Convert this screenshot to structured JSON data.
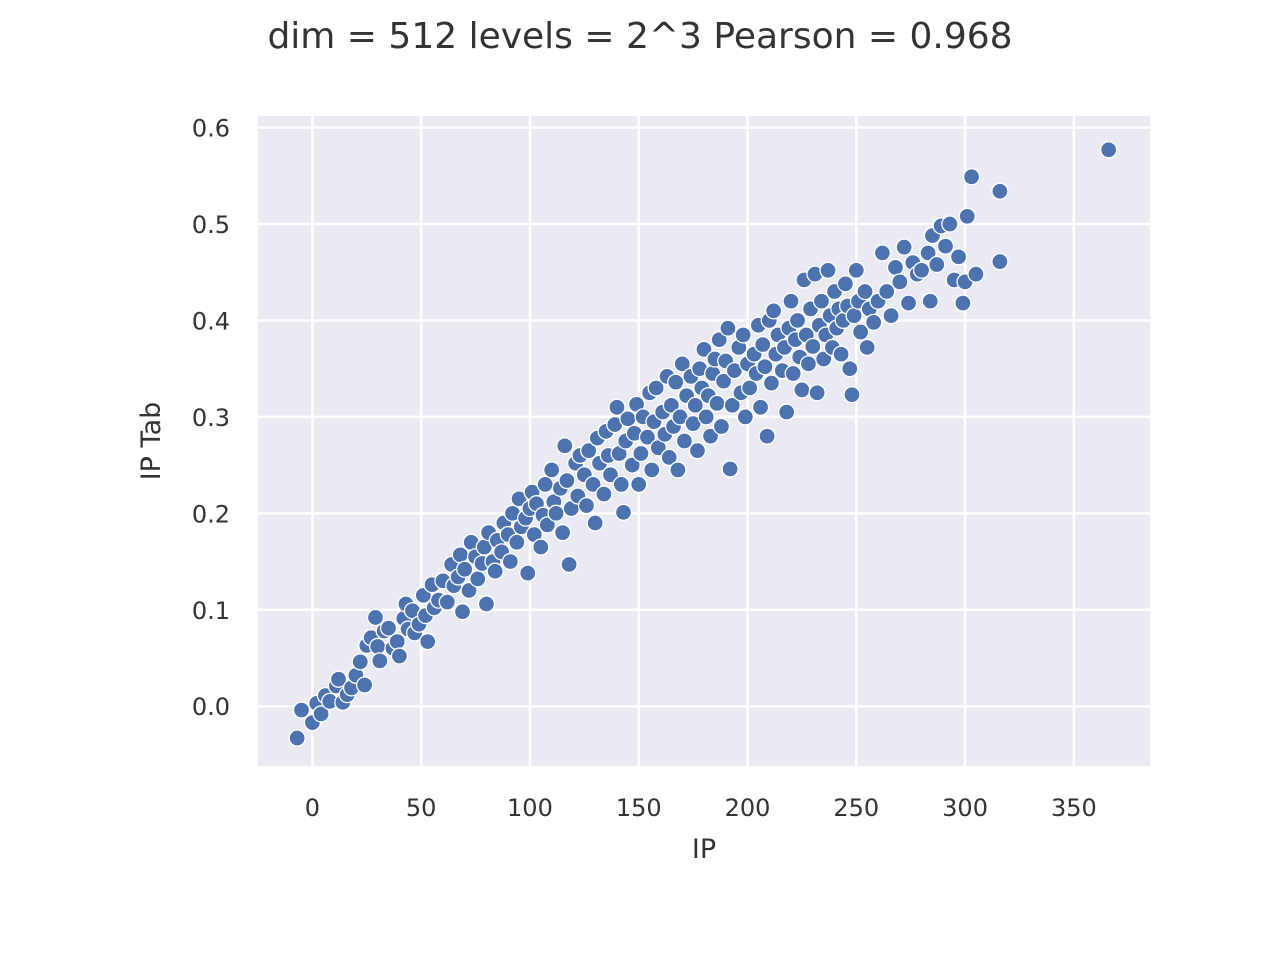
{
  "colors": {
    "background": "#ffffff",
    "plot_background": "#eaeaf2",
    "grid": "#ffffff",
    "marker": "#4c72b0",
    "marker_edge": "#ffffff",
    "text": "#333333"
  },
  "chart_data": {
    "type": "scatter",
    "title": "dim = 512 levels = 2^3 Pearson = 0.968",
    "xlabel": "IP",
    "ylabel": "IP Tab",
    "xlim": [
      -25,
      385
    ],
    "ylim": [
      -0.062,
      0.612
    ],
    "x_ticks": [
      0,
      50,
      100,
      150,
      200,
      250,
      300,
      350
    ],
    "y_ticks": [
      0.0,
      0.1,
      0.2,
      0.3,
      0.4,
      0.5,
      0.6
    ],
    "x_tick_labels": [
      "0",
      "50",
      "100",
      "150",
      "200",
      "250",
      "300",
      "350"
    ],
    "y_tick_labels": [
      "0.0",
      "0.1",
      "0.2",
      "0.3",
      "0.4",
      "0.5",
      "0.6"
    ],
    "grid": true,
    "legend": "none",
    "series": [
      {
        "points": [
          [
            -7,
            -0.033
          ],
          [
            -5,
            -0.004
          ],
          [
            0,
            -0.017
          ],
          [
            2,
            0.003
          ],
          [
            4,
            -0.008
          ],
          [
            6,
            0.011
          ],
          [
            8,
            0.005
          ],
          [
            11,
            0.021
          ],
          [
            12,
            0.028
          ],
          [
            14,
            0.004
          ],
          [
            16,
            0.012
          ],
          [
            18,
            0.019
          ],
          [
            20,
            0.032
          ],
          [
            22,
            0.046
          ],
          [
            24,
            0.022
          ],
          [
            25,
            0.063
          ],
          [
            27,
            0.071
          ],
          [
            29,
            0.092
          ],
          [
            30,
            0.062
          ],
          [
            31,
            0.047
          ],
          [
            33,
            0.078
          ],
          [
            35,
            0.081
          ],
          [
            37,
            0.06
          ],
          [
            39,
            0.067
          ],
          [
            40,
            0.052
          ],
          [
            42,
            0.091
          ],
          [
            43,
            0.106
          ],
          [
            44,
            0.08
          ],
          [
            46,
            0.099
          ],
          [
            47,
            0.076
          ],
          [
            49,
            0.085
          ],
          [
            51,
            0.115
          ],
          [
            52,
            0.094
          ],
          [
            53,
            0.067
          ],
          [
            55,
            0.126
          ],
          [
            56,
            0.102
          ],
          [
            58,
            0.11
          ],
          [
            60,
            0.13
          ],
          [
            62,
            0.108
          ],
          [
            64,
            0.147
          ],
          [
            65,
            0.125
          ],
          [
            67,
            0.134
          ],
          [
            68,
            0.157
          ],
          [
            69,
            0.098
          ],
          [
            70,
            0.142
          ],
          [
            72,
            0.12
          ],
          [
            73,
            0.17
          ],
          [
            75,
            0.155
          ],
          [
            76,
            0.132
          ],
          [
            78,
            0.148
          ],
          [
            79,
            0.165
          ],
          [
            80,
            0.106
          ],
          [
            81,
            0.18
          ],
          [
            83,
            0.15
          ],
          [
            84,
            0.14
          ],
          [
            85,
            0.172
          ],
          [
            87,
            0.16
          ],
          [
            88,
            0.19
          ],
          [
            90,
            0.178
          ],
          [
            91,
            0.15
          ],
          [
            92,
            0.2
          ],
          [
            94,
            0.17
          ],
          [
            95,
            0.215
          ],
          [
            96,
            0.186
          ],
          [
            98,
            0.195
          ],
          [
            99,
            0.138
          ],
          [
            100,
            0.205
          ],
          [
            101,
            0.222
          ],
          [
            102,
            0.178
          ],
          [
            103,
            0.21
          ],
          [
            105,
            0.165
          ],
          [
            106,
            0.198
          ],
          [
            107,
            0.23
          ],
          [
            108,
            0.188
          ],
          [
            110,
            0.245
          ],
          [
            111,
            0.212
          ],
          [
            112,
            0.2
          ],
          [
            114,
            0.226
          ],
          [
            115,
            0.18
          ],
          [
            116,
            0.27
          ],
          [
            117,
            0.234
          ],
          [
            118,
            0.147
          ],
          [
            119,
            0.205
          ],
          [
            121,
            0.252
          ],
          [
            122,
            0.218
          ],
          [
            123,
            0.26
          ],
          [
            125,
            0.24
          ],
          [
            126,
            0.208
          ],
          [
            127,
            0.265
          ],
          [
            129,
            0.23
          ],
          [
            130,
            0.19
          ],
          [
            131,
            0.278
          ],
          [
            132,
            0.252
          ],
          [
            134,
            0.22
          ],
          [
            135,
            0.285
          ],
          [
            136,
            0.26
          ],
          [
            137,
            0.24
          ],
          [
            139,
            0.292
          ],
          [
            140,
            0.31
          ],
          [
            141,
            0.262
          ],
          [
            142,
            0.23
          ],
          [
            143,
            0.201
          ],
          [
            144,
            0.275
          ],
          [
            145,
            0.298
          ],
          [
            147,
            0.25
          ],
          [
            148,
            0.283
          ],
          [
            149,
            0.313
          ],
          [
            150,
            0.23
          ],
          [
            151,
            0.262
          ],
          [
            152,
            0.3
          ],
          [
            154,
            0.279
          ],
          [
            155,
            0.325
          ],
          [
            156,
            0.245
          ],
          [
            157,
            0.295
          ],
          [
            158,
            0.33
          ],
          [
            159,
            0.268
          ],
          [
            161,
            0.305
          ],
          [
            162,
            0.282
          ],
          [
            163,
            0.342
          ],
          [
            164,
            0.258
          ],
          [
            165,
            0.312
          ],
          [
            166,
            0.29
          ],
          [
            167,
            0.336
          ],
          [
            168,
            0.245
          ],
          [
            169,
            0.3
          ],
          [
            170,
            0.355
          ],
          [
            171,
            0.275
          ],
          [
            172,
            0.322
          ],
          [
            174,
            0.342
          ],
          [
            175,
            0.293
          ],
          [
            176,
            0.312
          ],
          [
            177,
            0.265
          ],
          [
            178,
            0.35
          ],
          [
            179,
            0.33
          ],
          [
            180,
            0.37
          ],
          [
            181,
            0.3
          ],
          [
            182,
            0.322
          ],
          [
            183,
            0.28
          ],
          [
            184,
            0.345
          ],
          [
            185,
            0.36
          ],
          [
            186,
            0.314
          ],
          [
            187,
            0.38
          ],
          [
            188,
            0.29
          ],
          [
            189,
            0.337
          ],
          [
            190,
            0.358
          ],
          [
            191,
            0.392
          ],
          [
            192,
            0.246
          ],
          [
            193,
            0.312
          ],
          [
            194,
            0.348
          ],
          [
            196,
            0.372
          ],
          [
            197,
            0.325
          ],
          [
            198,
            0.385
          ],
          [
            199,
            0.3
          ],
          [
            200,
            0.355
          ],
          [
            201,
            0.33
          ],
          [
            203,
            0.365
          ],
          [
            204,
            0.345
          ],
          [
            205,
            0.395
          ],
          [
            206,
            0.31
          ],
          [
            207,
            0.375
          ],
          [
            208,
            0.352
          ],
          [
            209,
            0.28
          ],
          [
            210,
            0.4
          ],
          [
            211,
            0.335
          ],
          [
            212,
            0.41
          ],
          [
            213,
            0.365
          ],
          [
            214,
            0.385
          ],
          [
            216,
            0.348
          ],
          [
            217,
            0.372
          ],
          [
            218,
            0.305
          ],
          [
            219,
            0.392
          ],
          [
            220,
            0.42
          ],
          [
            221,
            0.345
          ],
          [
            222,
            0.38
          ],
          [
            223,
            0.4
          ],
          [
            224,
            0.362
          ],
          [
            225,
            0.328
          ],
          [
            226,
            0.442
          ],
          [
            227,
            0.385
          ],
          [
            228,
            0.355
          ],
          [
            229,
            0.412
          ],
          [
            230,
            0.373
          ],
          [
            231,
            0.448
          ],
          [
            232,
            0.325
          ],
          [
            233,
            0.395
          ],
          [
            234,
            0.42
          ],
          [
            235,
            0.36
          ],
          [
            236,
            0.385
          ],
          [
            237,
            0.452
          ],
          [
            238,
            0.405
          ],
          [
            239,
            0.372
          ],
          [
            240,
            0.43
          ],
          [
            241,
            0.392
          ],
          [
            242,
            0.412
          ],
          [
            243,
            0.365
          ],
          [
            244,
            0.4
          ],
          [
            245,
            0.438
          ],
          [
            246,
            0.415
          ],
          [
            247,
            0.35
          ],
          [
            248,
            0.323
          ],
          [
            249,
            0.405
          ],
          [
            250,
            0.452
          ],
          [
            251,
            0.42
          ],
          [
            252,
            0.388
          ],
          [
            254,
            0.43
          ],
          [
            255,
            0.372
          ],
          [
            256,
            0.412
          ],
          [
            258,
            0.398
          ],
          [
            260,
            0.42
          ],
          [
            262,
            0.47
          ],
          [
            264,
            0.43
          ],
          [
            266,
            0.405
          ],
          [
            268,
            0.455
          ],
          [
            270,
            0.44
          ],
          [
            272,
            0.476
          ],
          [
            274,
            0.418
          ],
          [
            276,
            0.46
          ],
          [
            278,
            0.448
          ],
          [
            280,
            0.452
          ],
          [
            283,
            0.47
          ],
          [
            284,
            0.42
          ],
          [
            285,
            0.488
          ],
          [
            287,
            0.458
          ],
          [
            289,
            0.498
          ],
          [
            291,
            0.477
          ],
          [
            293,
            0.5
          ],
          [
            295,
            0.442
          ],
          [
            297,
            0.466
          ],
          [
            299,
            0.418
          ],
          [
            300,
            0.44
          ],
          [
            301,
            0.508
          ],
          [
            303,
            0.549
          ],
          [
            305,
            0.448
          ],
          [
            316,
            0.534
          ],
          [
            316,
            0.461
          ],
          [
            366,
            0.577
          ]
        ]
      }
    ]
  }
}
